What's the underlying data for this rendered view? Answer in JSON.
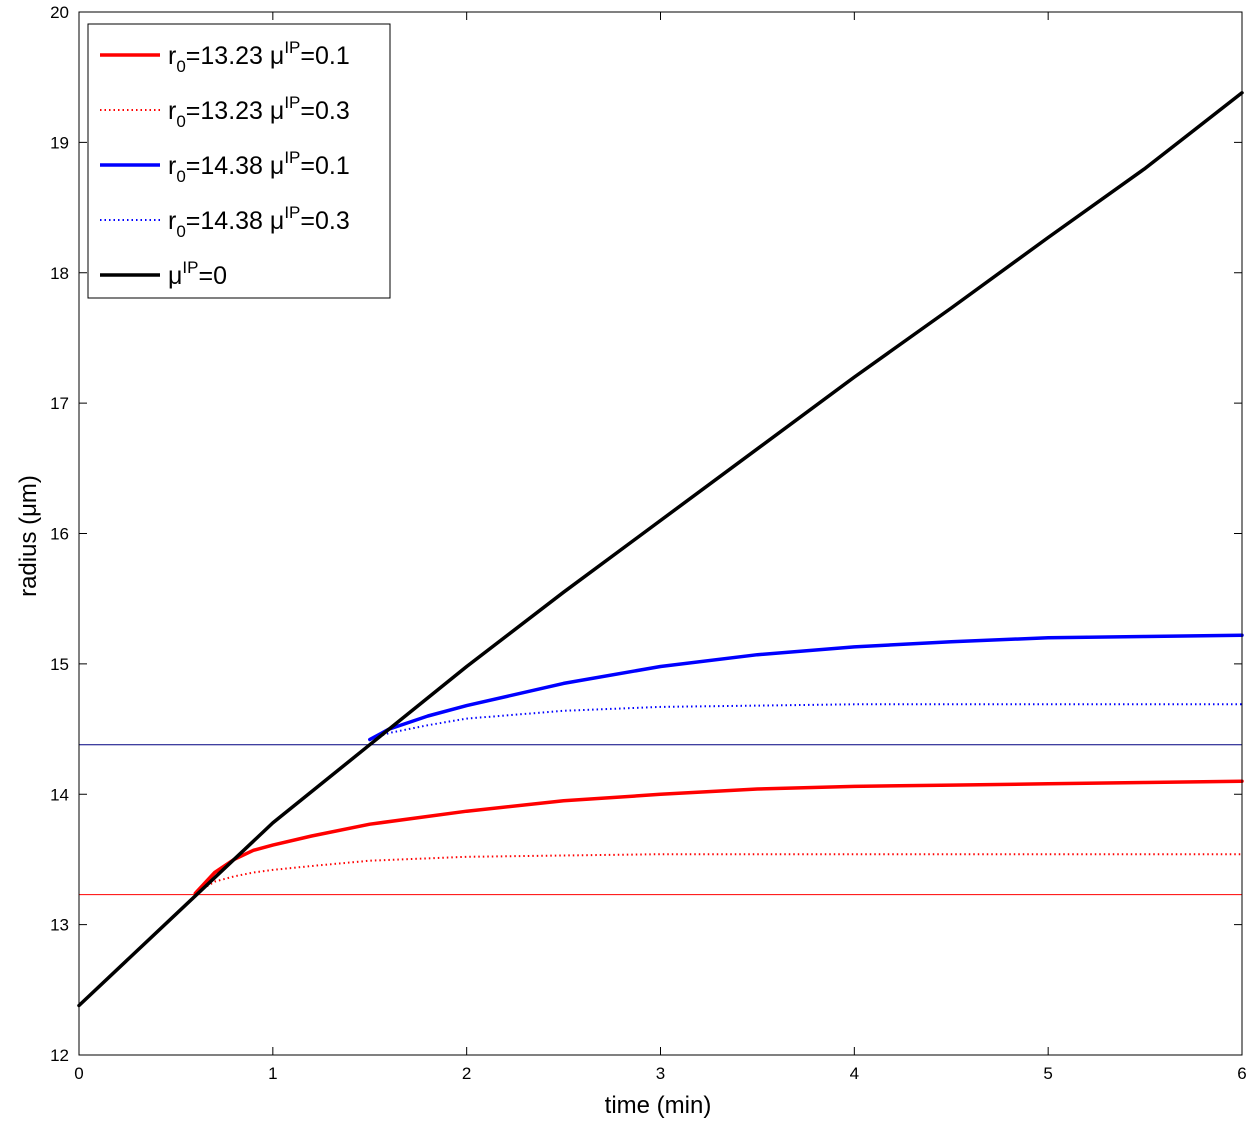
{
  "chart_data": {
    "type": "line",
    "xlabel": "time (min)",
    "ylabel_text": "radius (",
    "ylabel_unit_mu": "μ",
    "ylabel_unit_rest": "m)",
    "xlim": [
      0,
      6
    ],
    "ylim": [
      12,
      20
    ],
    "xticks": [
      0,
      1,
      2,
      3,
      4,
      5,
      6
    ],
    "yticks": [
      12,
      13,
      14,
      15,
      16,
      17,
      18,
      19,
      20
    ],
    "grid": false,
    "legend_position": "top-left",
    "series": [
      {
        "key": "red-solid",
        "name": "r0=13.23 μIP=0.1",
        "legend_parts": {
          "r": "r",
          "sub": "0",
          "value": "=13.23 ",
          "mu": "μ",
          "sup": "IP",
          "param": "=0.1"
        },
        "color": "#ff0000",
        "style": "solid",
        "x": [
          0.6,
          0.7,
          0.8,
          0.9,
          1.0,
          1.2,
          1.5,
          2.0,
          2.5,
          3.0,
          3.5,
          4.0,
          4.5,
          5.0,
          5.5,
          6.0
        ],
        "y": [
          13.24,
          13.4,
          13.5,
          13.57,
          13.61,
          13.68,
          13.77,
          13.87,
          13.95,
          14.0,
          14.04,
          14.06,
          14.07,
          14.08,
          14.09,
          14.1
        ]
      },
      {
        "key": "red-dotted",
        "name": "r0=13.23 μIP=0.3",
        "legend_parts": {
          "r": "r",
          "sub": "0",
          "value": "=13.23 ",
          "mu": "μ",
          "sup": "IP",
          "param": "=0.3"
        },
        "color": "#ff0000",
        "style": "dotted",
        "x": [
          0.6,
          0.7,
          0.8,
          0.9,
          1.0,
          1.2,
          1.5,
          2.0,
          2.5,
          3.0,
          4.0,
          5.0,
          6.0
        ],
        "y": [
          13.24,
          13.33,
          13.37,
          13.4,
          13.42,
          13.45,
          13.49,
          13.52,
          13.53,
          13.54,
          13.54,
          13.54,
          13.54
        ]
      },
      {
        "key": "blue-solid",
        "name": "r0=14.38 μIP=0.1",
        "legend_parts": {
          "r": "r",
          "sub": "0",
          "value": "=14.38 ",
          "mu": "μ",
          "sup": "IP",
          "param": "=0.1"
        },
        "color": "#0000ff",
        "style": "solid",
        "x": [
          1.5,
          1.6,
          1.8,
          2.0,
          2.5,
          3.0,
          3.5,
          4.0,
          4.5,
          5.0,
          5.5,
          6.0
        ],
        "y": [
          14.42,
          14.5,
          14.6,
          14.68,
          14.85,
          14.98,
          15.07,
          15.13,
          15.17,
          15.2,
          15.21,
          15.22
        ]
      },
      {
        "key": "blue-dotted",
        "name": "r0=14.38 μIP=0.3",
        "legend_parts": {
          "r": "r",
          "sub": "0",
          "value": "=14.38 ",
          "mu": "μ",
          "sup": "IP",
          "param": "=0.3"
        },
        "color": "#0000ff",
        "style": "dotted",
        "x": [
          1.5,
          1.6,
          1.8,
          2.0,
          2.5,
          3.0,
          3.5,
          4.0,
          5.0,
          6.0
        ],
        "y": [
          14.42,
          14.47,
          14.53,
          14.58,
          14.64,
          14.67,
          14.68,
          14.69,
          14.69,
          14.69
        ]
      },
      {
        "key": "black-solid",
        "name": "μIP=0",
        "legend_parts": {
          "r": "",
          "sub": "",
          "value": "",
          "mu": "μ",
          "sup": "IP",
          "param": "=0"
        },
        "color": "#000000",
        "style": "solid",
        "x": [
          0,
          0.5,
          1.0,
          1.5,
          2.0,
          2.5,
          3.0,
          3.5,
          4.0,
          4.5,
          5.0,
          5.5,
          6.0
        ],
        "y": [
          12.38,
          13.08,
          13.78,
          14.38,
          14.98,
          15.55,
          16.1,
          16.65,
          17.2,
          17.73,
          18.27,
          18.8,
          19.38
        ]
      }
    ],
    "reference_lines": [
      {
        "key": "ref-blue",
        "y": 14.38,
        "color": "#000080"
      },
      {
        "key": "ref-red",
        "y": 13.23,
        "color": "#ff0000"
      }
    ]
  }
}
